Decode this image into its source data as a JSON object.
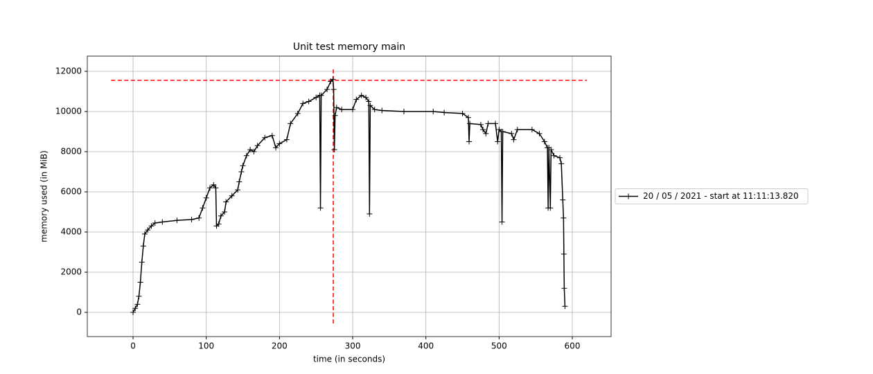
{
  "chart_data": {
    "type": "line",
    "title": "Unit test memory main",
    "x_label": "time (in seconds)",
    "y_label": "memory used (in MiB)",
    "x": [
      0,
      3,
      6,
      8,
      10,
      12,
      14,
      16,
      20,
      25,
      30,
      40,
      60,
      80,
      90,
      95,
      100,
      105,
      110,
      113,
      114,
      117,
      120,
      125,
      127,
      135,
      143,
      145,
      148,
      150,
      155,
      160,
      165,
      170,
      180,
      190,
      195,
      200,
      210,
      215,
      225,
      232,
      240,
      250,
      255,
      256,
      257,
      265,
      270,
      273,
      274,
      275,
      276,
      278,
      285,
      300,
      305,
      312,
      318,
      322,
      323,
      324,
      330,
      340,
      370,
      410,
      425,
      450,
      458,
      459,
      460,
      475,
      478,
      482,
      485,
      495,
      498,
      500,
      503,
      504,
      505,
      517,
      520,
      525,
      545,
      555,
      562,
      566,
      567,
      568,
      570,
      571,
      575,
      583,
      585,
      587,
      588,
      588.5,
      589,
      590
    ],
    "series": [
      {
        "name": "20 / 05 / 2021 - start at 11:11:13.820",
        "color": "#000000",
        "values": [
          0,
          200,
          400,
          800,
          1500,
          2500,
          3300,
          3900,
          4100,
          4300,
          4450,
          4500,
          4580,
          4620,
          4700,
          5200,
          5700,
          6200,
          6350,
          6200,
          4300,
          4400,
          4800,
          5000,
          5500,
          5800,
          6100,
          6500,
          7000,
          7300,
          7800,
          8100,
          8000,
          8300,
          8700,
          8800,
          8200,
          8400,
          8600,
          9400,
          9900,
          10400,
          10500,
          10700,
          10800,
          5200,
          10800,
          11100,
          11500,
          11600,
          11100,
          8100,
          9800,
          10200,
          10100,
          10100,
          10600,
          10800,
          10700,
          10500,
          4900,
          10300,
          10100,
          10050,
          10000,
          10000,
          9950,
          9900,
          9700,
          8500,
          9400,
          9350,
          9100,
          8900,
          9400,
          9400,
          8500,
          9100,
          9000,
          4500,
          9000,
          8900,
          8600,
          9100,
          9100,
          8900,
          8500,
          8200,
          5200,
          8200,
          5200,
          8100,
          7800,
          7700,
          7400,
          5600,
          4700,
          2900,
          1200,
          300
        ]
      }
    ],
    "max_memory_line": {
      "y": 11550,
      "xrange": [
        -30,
        620
      ],
      "color": "#ff0000"
    },
    "max_time_line": {
      "x": 273.5,
      "yrange": [
        -550,
        12100
      ],
      "color": "#ff0000"
    },
    "xlim": [
      -62.5,
      653
    ],
    "ylim": [
      -1207,
      12759
    ],
    "xticks": [
      0,
      100,
      200,
      300,
      400,
      500,
      600
    ],
    "yticks": [
      0,
      2000,
      4000,
      6000,
      8000,
      10000,
      12000
    ],
    "grid": true,
    "legend_position": "outside right"
  }
}
